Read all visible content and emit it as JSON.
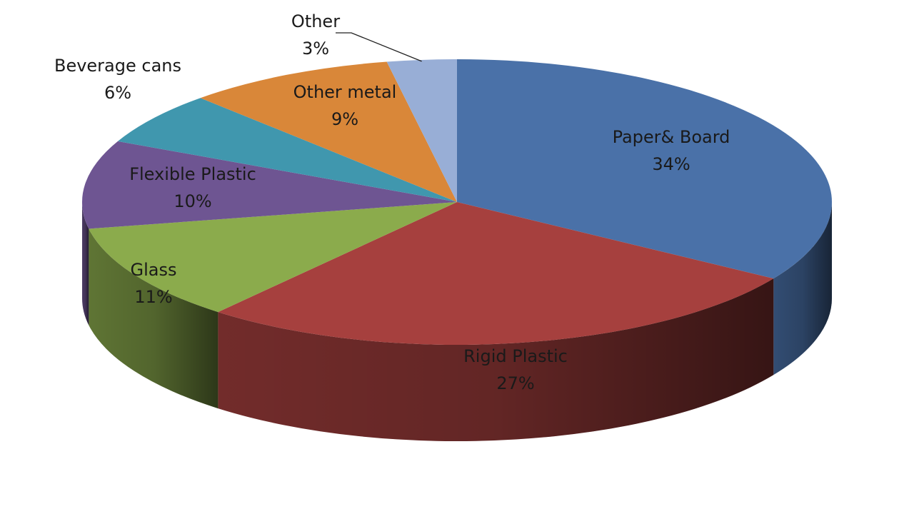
{
  "chart_data": {
    "type": "pie",
    "style": "3d",
    "title": "",
    "slices": [
      {
        "label": "Paper& Board",
        "value": 34,
        "pct": "34%",
        "color": "#4a71a8"
      },
      {
        "label": "Rigid Plastic",
        "value": 27,
        "pct": "27%",
        "color": "#a6403e"
      },
      {
        "label": "Glass",
        "value": 11,
        "pct": "11%",
        "color": "#8bab4c"
      },
      {
        "label": "Flexible Plastic",
        "value": 10,
        "pct": "10%",
        "color": "#6e5592"
      },
      {
        "label": "Beverage cans",
        "value": 6,
        "pct": "6%",
        "color": "#4097ae"
      },
      {
        "label": "Other metal",
        "value": 9,
        "pct": "9%",
        "color": "#d98739"
      },
      {
        "label": "Other",
        "value": 3,
        "pct": "3%",
        "color": "#98aed6"
      }
    ]
  }
}
